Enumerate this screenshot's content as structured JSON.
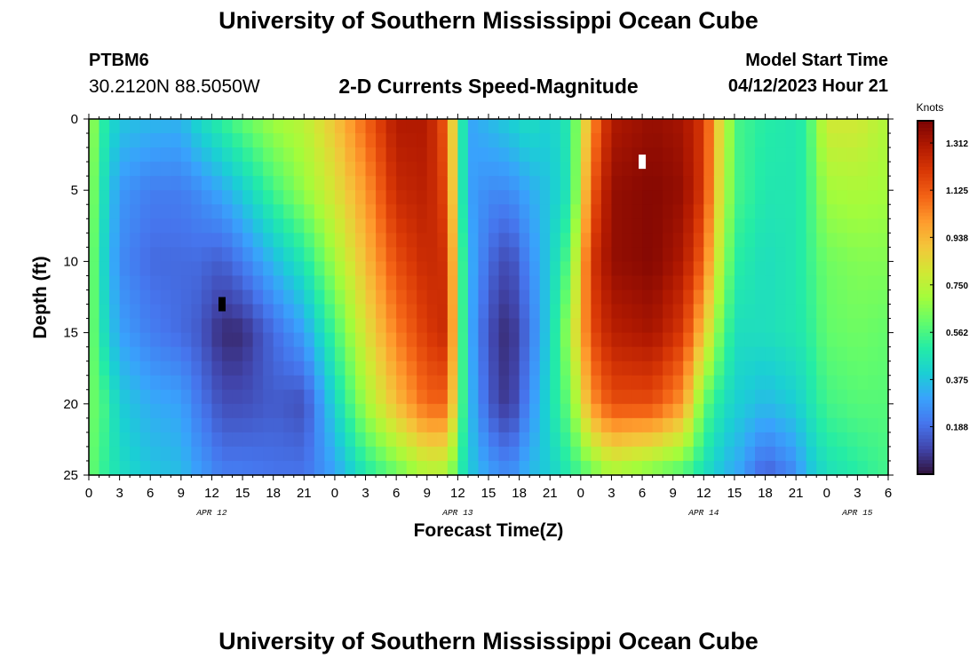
{
  "header": {
    "title": "University of Southern Mississippi Ocean Cube",
    "station_id": "PTBM6",
    "coordinates": "30.2120N  88.5050W",
    "subtitle": "2-D Currents Speed-Magnitude",
    "model_start_label": "Model Start Time",
    "model_start_value": "04/12/2023 Hour 21"
  },
  "footer": {
    "title": "University of Southern Mississippi Ocean Cube"
  },
  "chart_data": {
    "type": "heatmap",
    "xlabel": "Forecast Time(Z)",
    "ylabel": "Depth (ft)",
    "xlim": [
      0,
      78
    ],
    "ylim": [
      0,
      25
    ],
    "y_inverted": true,
    "x_tick_labels": [
      "0",
      "3",
      "6",
      "9",
      "12",
      "15",
      "18",
      "21",
      "0",
      "3",
      "6",
      "9",
      "12",
      "15",
      "18",
      "21",
      "0",
      "3",
      "6",
      "9",
      "12",
      "15",
      "18",
      "21",
      "0",
      "3",
      "6"
    ],
    "y_ticks": [
      0,
      5,
      10,
      15,
      20,
      25
    ],
    "date_labels": [
      {
        "text": "APR 12",
        "hour": 12
      },
      {
        "text": "APR 13",
        "hour": 36
      },
      {
        "text": "APR 14",
        "hour": 60
      },
      {
        "text": "APR 15",
        "hour": 75
      }
    ],
    "colorbar": {
      "title": "Knots",
      "min": 0,
      "max": 1.4,
      "ticks": [
        "1.312",
        "1.125",
        "0.938",
        "0.750",
        "0.562",
        "0.375",
        "0.188"
      ],
      "colors": [
        "#30123b",
        "#4145ab",
        "#4675ed",
        "#39a2fc",
        "#1bcfd4",
        "#24eca6",
        "#61fc6c",
        "#a4fc3b",
        "#d1e834",
        "#f3c63a",
        "#fe9b2d",
        "#f36315",
        "#d93806",
        "#b11901",
        "#7a0403"
      ]
    },
    "time_profile": [
      {
        "hour": 0,
        "speeds": [
          0.72,
          0.7,
          0.68,
          0.66,
          0.64,
          0.62
        ]
      },
      {
        "hour": 1.5,
        "speeds": [
          0.5,
          0.45,
          0.42,
          0.45,
          0.55,
          0.52
        ]
      },
      {
        "hour": 3,
        "speeds": [
          0.38,
          0.28,
          0.25,
          0.3,
          0.4,
          0.45
        ]
      },
      {
        "hour": 6,
        "speeds": [
          0.35,
          0.22,
          0.18,
          0.22,
          0.32,
          0.38
        ]
      },
      {
        "hour": 9,
        "speeds": [
          0.34,
          0.22,
          0.18,
          0.18,
          0.3,
          0.36
        ]
      },
      {
        "hour": 10.5,
        "speeds": [
          0.42,
          0.25,
          0.18,
          0.15,
          0.22,
          0.3
        ]
      },
      {
        "hour": 13,
        "speeds": [
          0.52,
          0.32,
          0.15,
          0.05,
          0.12,
          0.22
        ]
      },
      {
        "hour": 15,
        "speeds": [
          0.6,
          0.4,
          0.22,
          0.05,
          0.12,
          0.22
        ]
      },
      {
        "hour": 18,
        "speeds": [
          0.7,
          0.55,
          0.35,
          0.18,
          0.15,
          0.2
        ]
      },
      {
        "hour": 21,
        "speeds": [
          0.75,
          0.68,
          0.48,
          0.3,
          0.12,
          0.2
        ]
      },
      {
        "hour": 24,
        "speeds": [
          0.9,
          0.82,
          0.7,
          0.55,
          0.42,
          0.3
        ]
      },
      {
        "hour": 27,
        "speeds": [
          1.1,
          1.0,
          0.92,
          0.82,
          0.7,
          0.48
        ]
      },
      {
        "hour": 30,
        "speeds": [
          1.3,
          1.25,
          1.15,
          1.05,
          0.92,
          0.6
        ]
      },
      {
        "hour": 33,
        "speeds": [
          1.3,
          1.28,
          1.25,
          1.2,
          1.1,
          0.72
        ]
      },
      {
        "hour": 35,
        "speeds": [
          1.1,
          1.15,
          1.22,
          1.25,
          1.1,
          0.7
        ]
      },
      {
        "hour": 36,
        "speeds": [
          0.65,
          0.65,
          0.7,
          0.72,
          0.7,
          0.55
        ]
      },
      {
        "hour": 37,
        "speeds": [
          0.3,
          0.3,
          0.35,
          0.35,
          0.38,
          0.4
        ]
      },
      {
        "hour": 39,
        "speeds": [
          0.35,
          0.25,
          0.18,
          0.12,
          0.15,
          0.3
        ]
      },
      {
        "hour": 41,
        "speeds": [
          0.4,
          0.25,
          0.1,
          0.04,
          0.06,
          0.25
        ]
      },
      {
        "hour": 43,
        "speeds": [
          0.45,
          0.32,
          0.25,
          0.2,
          0.25,
          0.35
        ]
      },
      {
        "hour": 45,
        "speeds": [
          0.4,
          0.38,
          0.4,
          0.42,
          0.45,
          0.4
        ]
      },
      {
        "hour": 47,
        "speeds": [
          0.5,
          0.48,
          0.6,
          0.72,
          0.62,
          0.5
        ]
      },
      {
        "hour": 49,
        "speeds": [
          1.0,
          1.1,
          1.2,
          1.15,
          1.0,
          0.6
        ]
      },
      {
        "hour": 51,
        "speeds": [
          1.3,
          1.35,
          1.35,
          1.28,
          1.15,
          0.7
        ]
      },
      {
        "hour": 55,
        "speeds": [
          1.35,
          1.38,
          1.38,
          1.32,
          1.15,
          0.62
        ]
      },
      {
        "hour": 58,
        "speeds": [
          1.32,
          1.35,
          1.3,
          1.2,
          1.0,
          0.55
        ]
      },
      {
        "hour": 60,
        "speeds": [
          1.2,
          1.2,
          1.1,
          0.9,
          0.6,
          0.45
        ]
      },
      {
        "hour": 62,
        "speeds": [
          0.75,
          0.72,
          0.65,
          0.55,
          0.45,
          0.35
        ]
      },
      {
        "hour": 63.5,
        "speeds": [
          0.55,
          0.55,
          0.5,
          0.45,
          0.4,
          0.3
        ]
      },
      {
        "hour": 66,
        "speeds": [
          0.5,
          0.48,
          0.45,
          0.45,
          0.35,
          0.15
        ]
      },
      {
        "hour": 69,
        "speeds": [
          0.48,
          0.48,
          0.48,
          0.48,
          0.4,
          0.25
        ]
      },
      {
        "hour": 70,
        "speeds": [
          0.52,
          0.52,
          0.52,
          0.5,
          0.45,
          0.35
        ]
      },
      {
        "hour": 72,
        "speeds": [
          0.8,
          0.7,
          0.62,
          0.6,
          0.55,
          0.45
        ]
      },
      {
        "hour": 75,
        "speeds": [
          0.8,
          0.72,
          0.65,
          0.62,
          0.58,
          0.5
        ]
      },
      {
        "hour": 78,
        "speeds": [
          0.72,
          0.7,
          0.65,
          0.6,
          0.58,
          0.55
        ]
      }
    ],
    "markers": [
      {
        "hour": 13,
        "depth": 13,
        "color": "#000000"
      },
      {
        "hour": 54,
        "depth": 3,
        "color": "#ffffff"
      }
    ]
  }
}
